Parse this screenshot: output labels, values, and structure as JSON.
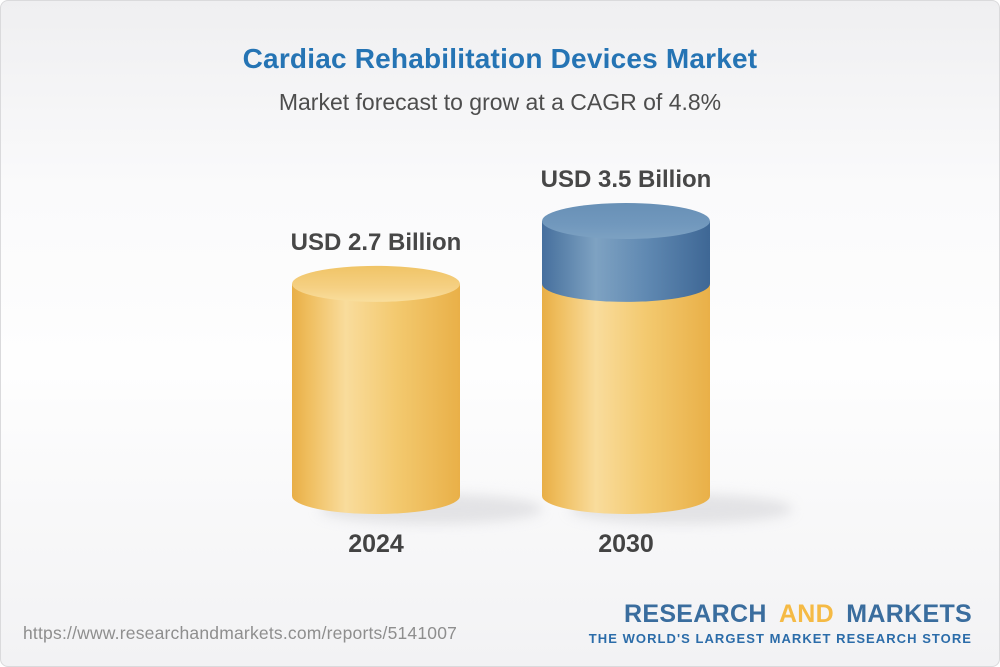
{
  "page": {
    "title": "Cardiac Rehabilitation Devices Market",
    "subtitle": "Market forecast to grow at a CAGR of 4.8%"
  },
  "chart_data": {
    "type": "bar",
    "variant": "3d-cylinder",
    "title": "Cardiac Rehabilitation Devices Market",
    "subtitle": "Market forecast to grow at a CAGR of 4.8%",
    "cagr_percent": 4.8,
    "unit": "USD Billion",
    "categories": [
      "2024",
      "2030"
    ],
    "values": [
      2.7,
      3.5
    ],
    "value_labels": [
      "USD 2.7 Billion",
      "USD 3.5 Billion"
    ],
    "growth_segment": {
      "from_value": 2.7,
      "to_value": 3.5
    },
    "ylim": [
      0,
      3.5
    ],
    "grid": false,
    "legend": false,
    "colors": {
      "bar_base": "#F3C96F",
      "bar_growth": "#6089B2",
      "title": "#2574B4",
      "subtitle": "#4D4D4D",
      "value_label": "#474747",
      "category_label": "#434343"
    }
  },
  "footer": {
    "url": "https://www.researchandmarkets.com/reports/5141007",
    "logo": {
      "research": "RESEARCH",
      "and": "AND",
      "markets": "MARKETS",
      "tagline": "THE WORLD'S LARGEST MARKET RESEARCH STORE",
      "blue": "#3A6D9E",
      "yellow": "#F5BA45",
      "tagline_color": "#2B6CA9"
    }
  }
}
